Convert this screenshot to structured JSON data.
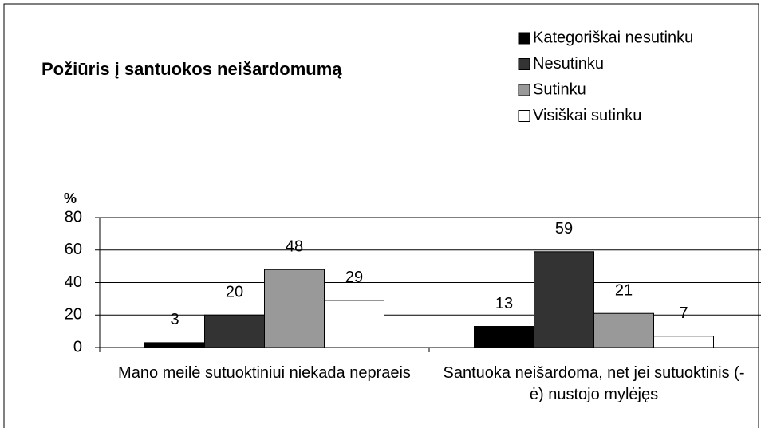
{
  "chart_data": {
    "type": "bar",
    "title": "Požiūris į santuokos neišardomumą",
    "y_label": "%",
    "categories": [
      "Mano meilė sutuoktiniui niekada nepraeis",
      "Santuoka neišardoma, net jei sutuoktinis (-ė) nustojo mylėjęs"
    ],
    "series": [
      {
        "name": "Kategoriškai nesutinku",
        "color": "#000000",
        "values": [
          3,
          13
        ]
      },
      {
        "name": "Nesutinku",
        "color": "#333333",
        "values": [
          20,
          59
        ]
      },
      {
        "name": "Sutinku",
        "color": "#999999",
        "values": [
          48,
          21
        ]
      },
      {
        "name": "Visiškai sutinku",
        "color": "#ffffff",
        "values": [
          29,
          7
        ]
      }
    ],
    "ylim": [
      0,
      80
    ],
    "yticks": [
      0,
      20,
      40,
      60,
      80
    ],
    "grid": true,
    "legend": "top-right"
  }
}
